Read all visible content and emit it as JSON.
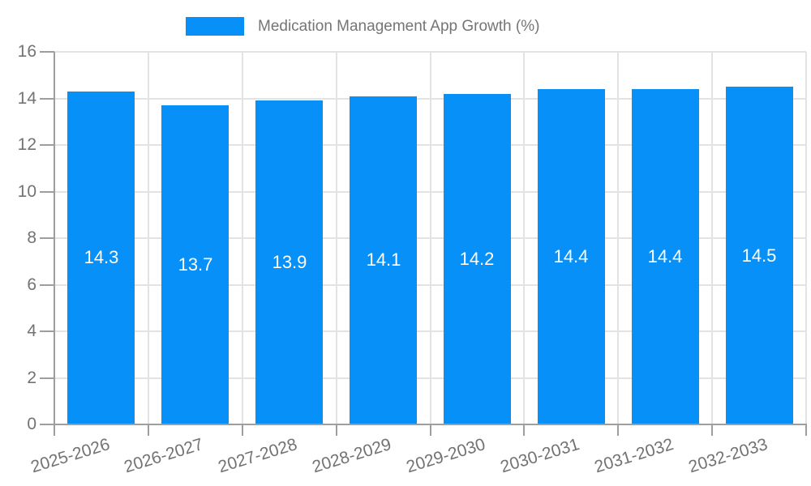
{
  "legend": {
    "label": "Medication Management App Growth (%)"
  },
  "chart_data": {
    "type": "bar",
    "title": "Medication Management App Growth (%)",
    "categories": [
      "2025-2026",
      "2026-2027",
      "2027-2028",
      "2028-2029",
      "2029-2030",
      "2030-2031",
      "2031-2032",
      "2032-2033"
    ],
    "values": [
      14.3,
      13.7,
      13.9,
      14.1,
      14.2,
      14.4,
      14.4,
      14.5
    ],
    "value_labels": [
      "14.3",
      "13.7",
      "13.9",
      "14.1",
      "14.2",
      "14.4",
      "14.4",
      "14.5"
    ],
    "xlabel": "",
    "ylabel": "",
    "ylim": [
      0,
      16
    ],
    "ytick_step": 2,
    "ytick_labels": [
      "0",
      "2",
      "4",
      "6",
      "8",
      "10",
      "12",
      "14",
      "16"
    ],
    "grid": true,
    "legend_position": "top",
    "colors": {
      "bar": "#0690f8",
      "grid": "#e3e3e3",
      "axis": "#9e9e9e",
      "tick_text": "#737373",
      "legend_text": "#757575",
      "bar_label_text": "#ffffff",
      "background": "#ffffff"
    }
  }
}
